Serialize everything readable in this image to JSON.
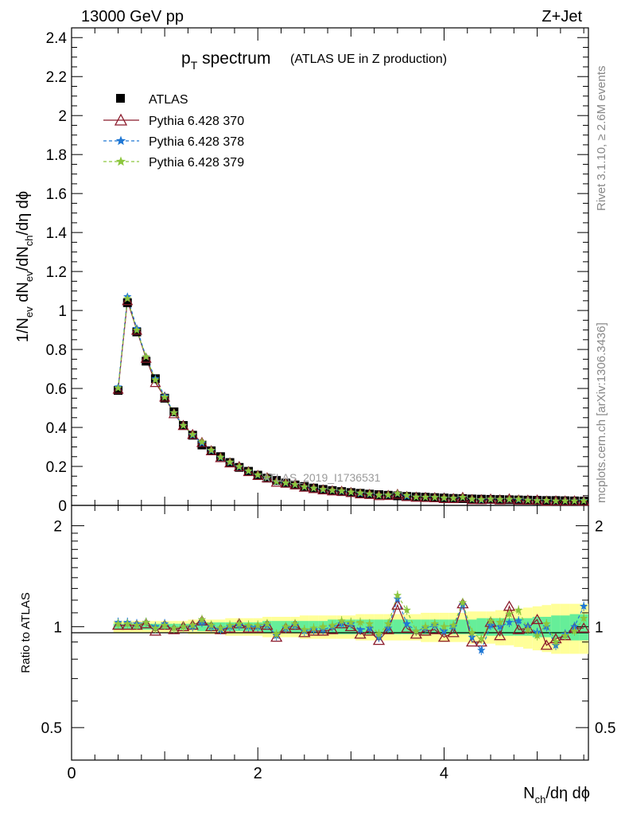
{
  "header": {
    "left": "13000 GeV pp",
    "right": "Z+Jet"
  },
  "side": {
    "top": "Rivet 3.1.10, ≥ 2.6M events",
    "bottom": "mcplots.cern.ch [arXiv:1306.3436]"
  },
  "chart_data": {
    "type": "line",
    "title_main": "p",
    "title_sub": "T",
    "title_rest": " spectrum",
    "title_note": "(ATLAS UE in Z production)",
    "watermark": "ATLAS_2019_I1736531",
    "ylabel": "1/N_ev dN_ev/dN_ch/dη dϕ",
    "ratio_ylabel": "Ratio to ATLAS",
    "xlabel": "N_ch/dη dϕ",
    "xlim": [
      0,
      5.55
    ],
    "ylim": [
      0,
      2.45
    ],
    "ratio_ylim": [
      0.4,
      2.3
    ],
    "x_ticks": [
      "0",
      "2",
      "4"
    ],
    "y_ticks": [
      "0",
      "0.2",
      "0.4",
      "0.6",
      "0.8",
      "1",
      "1.2",
      "1.4",
      "1.6",
      "1.8",
      "2",
      "2.2",
      "2.4"
    ],
    "ratio_ticks": [
      "0.5",
      "1",
      "2"
    ],
    "x": [
      0.5,
      0.6,
      0.7,
      0.8,
      0.9,
      1.0,
      1.1,
      1.2,
      1.3,
      1.4,
      1.5,
      1.6,
      1.7,
      1.8,
      1.9,
      2.0,
      2.1,
      2.2,
      2.3,
      2.4,
      2.5,
      2.6,
      2.7,
      2.8,
      2.9,
      3.0,
      3.1,
      3.2,
      3.3,
      3.4,
      3.5,
      3.6,
      3.7,
      3.8,
      3.9,
      4.0,
      4.1,
      4.2,
      4.3,
      4.4,
      4.5,
      4.6,
      4.7,
      4.8,
      4.9,
      5.0,
      5.1,
      5.2,
      5.3,
      5.4,
      5.5
    ],
    "data": [
      0.59,
      1.04,
      0.89,
      0.74,
      0.65,
      0.55,
      0.48,
      0.41,
      0.36,
      0.31,
      0.28,
      0.25,
      0.22,
      0.195,
      0.175,
      0.155,
      0.14,
      0.128,
      0.115,
      0.105,
      0.097,
      0.089,
      0.082,
      0.076,
      0.071,
      0.066,
      0.062,
      0.058,
      0.055,
      0.052,
      0.049,
      0.046,
      0.044,
      0.042,
      0.04,
      0.038,
      0.036,
      0.035,
      0.033,
      0.032,
      0.031,
      0.03,
      0.029,
      0.028,
      0.027,
      0.026,
      0.025,
      0.025,
      0.024,
      0.023,
      0.022
    ],
    "band_inner": [
      0.02,
      0.02,
      0.02,
      0.02,
      0.02,
      0.02,
      0.02,
      0.02,
      0.02,
      0.03,
      0.03,
      0.03,
      0.03,
      0.03,
      0.03,
      0.03,
      0.04,
      0.04,
      0.04,
      0.04,
      0.04,
      0.04,
      0.04,
      0.05,
      0.05,
      0.05,
      0.05,
      0.05,
      0.05,
      0.05,
      0.05,
      0.05,
      0.05,
      0.05,
      0.05,
      0.05,
      0.05,
      0.05,
      0.05,
      0.06,
      0.06,
      0.06,
      0.06,
      0.06,
      0.06,
      0.07,
      0.07,
      0.08,
      0.08,
      0.09,
      0.09
    ],
    "band_outer": [
      0.04,
      0.04,
      0.04,
      0.04,
      0.04,
      0.04,
      0.04,
      0.04,
      0.05,
      0.05,
      0.05,
      0.05,
      0.06,
      0.06,
      0.06,
      0.06,
      0.07,
      0.07,
      0.07,
      0.07,
      0.08,
      0.08,
      0.08,
      0.08,
      0.08,
      0.08,
      0.09,
      0.09,
      0.09,
      0.09,
      0.09,
      0.09,
      0.09,
      0.1,
      0.1,
      0.1,
      0.1,
      0.1,
      0.11,
      0.11,
      0.11,
      0.12,
      0.12,
      0.13,
      0.14,
      0.15,
      0.16,
      0.17,
      0.17,
      0.17,
      0.17
    ],
    "series": [
      {
        "name": "ATLAS",
        "color": "#000000",
        "marker": "square"
      },
      {
        "name": "Pythia 6.428 370",
        "color": "#8b1a2b",
        "marker": "triangle-open",
        "dash": "solid",
        "ratio": [
          1.01,
          1.01,
          1.01,
          1.02,
          0.97,
          1.01,
          0.98,
          1.0,
          1.01,
          1.04,
          1.0,
          0.98,
          0.99,
          1.02,
          0.99,
          0.99,
          1.01,
          0.93,
          0.99,
          1.01,
          0.96,
          0.97,
          0.97,
          0.98,
          1.02,
          1.0,
          0.95,
          0.97,
          0.91,
          0.98,
          1.16,
          0.99,
          0.95,
          0.97,
          0.98,
          0.93,
          0.96,
          1.17,
          0.9,
          0.9,
          1.03,
          0.94,
          1.15,
          0.98,
          0.99,
          1.05,
          0.88,
          0.92,
          0.94,
          0.99,
          0.99
        ]
      },
      {
        "name": "Pythia 6.428 378",
        "color": "#1f77d4",
        "marker": "star",
        "dash": "dashed",
        "ratio": [
          1.03,
          1.03,
          1.02,
          1.03,
          1.0,
          1.02,
          0.99,
          1.0,
          1.0,
          1.03,
          1.0,
          0.98,
          1.0,
          1.01,
          1.0,
          1.0,
          1.01,
          0.94,
          0.99,
          1.01,
          0.97,
          0.98,
          0.98,
          1.0,
          1.02,
          1.02,
          0.98,
          0.99,
          0.93,
          0.99,
          1.21,
          1.02,
          0.97,
          0.99,
          1.01,
          0.97,
          1.0,
          1.16,
          0.93,
          0.85,
          1.01,
          1.0,
          1.03,
          1.04,
          1.0,
          0.96,
          1.0,
          0.88,
          0.95,
          1.0,
          1.15
        ]
      },
      {
        "name": "Pythia 6.428 379",
        "color": "#8cc63e",
        "marker": "star",
        "dash": "dashed",
        "ratio": [
          1.02,
          1.02,
          1.01,
          1.03,
          0.99,
          1.01,
          0.99,
          1.0,
          1.01,
          1.05,
          1.01,
          0.99,
          1.01,
          1.02,
          1.01,
          1.01,
          1.02,
          0.95,
          1.0,
          1.02,
          0.98,
          0.99,
          1.0,
          1.01,
          1.04,
          1.03,
          1.03,
          1.02,
          0.95,
          1.02,
          1.24,
          1.12,
          0.97,
          1.0,
          1.02,
          1.0,
          1.01,
          1.18,
          0.96,
          0.92,
          1.04,
          1.03,
          1.09,
          1.12,
          0.98,
          0.94,
          1.02,
          0.9,
          0.94,
          0.97,
          1.06
        ]
      }
    ]
  }
}
